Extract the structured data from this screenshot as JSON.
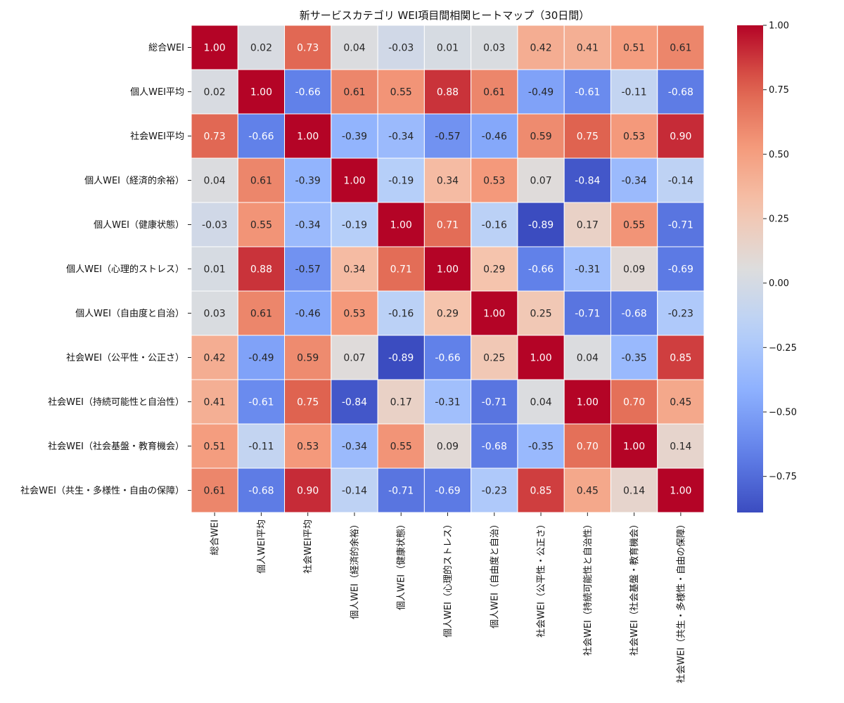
{
  "chart_data": {
    "type": "heatmap",
    "title": "新サービスカテゴリ WEI項目間相関ヒートマップ（30日間）",
    "labels": [
      "総合WEI",
      "個人WEI平均",
      "社会WEI平均",
      "個人WEI（経済的余裕）",
      "個人WEI（健康状態）",
      "個人WEI（心理的ストレス）",
      "個人WEI（自由度と自治）",
      "社会WEI（公平性・公正さ）",
      "社会WEI（持続可能性と自治性）",
      "社会WEI（社会基盤・教育機会）",
      "社会WEI（共生・多様性・自由の保障）"
    ],
    "matrix": [
      [
        1.0,
        0.02,
        0.73,
        0.04,
        -0.03,
        0.01,
        0.03,
        0.42,
        0.41,
        0.51,
        0.61
      ],
      [
        0.02,
        1.0,
        -0.66,
        0.61,
        0.55,
        0.88,
        0.61,
        -0.49,
        -0.61,
        -0.11,
        -0.68
      ],
      [
        0.73,
        -0.66,
        1.0,
        -0.39,
        -0.34,
        -0.57,
        -0.46,
        0.59,
        0.75,
        0.53,
        0.9
      ],
      [
        0.04,
        0.61,
        -0.39,
        1.0,
        -0.19,
        0.34,
        0.53,
        0.07,
        -0.84,
        -0.34,
        -0.14
      ],
      [
        -0.03,
        0.55,
        -0.34,
        -0.19,
        1.0,
        0.71,
        -0.16,
        -0.89,
        0.17,
        0.55,
        -0.71
      ],
      [
        0.01,
        0.88,
        -0.57,
        0.34,
        0.71,
        1.0,
        0.29,
        -0.66,
        -0.31,
        0.09,
        -0.69
      ],
      [
        0.03,
        0.61,
        -0.46,
        0.53,
        -0.16,
        0.29,
        1.0,
        0.25,
        -0.71,
        -0.68,
        -0.23
      ],
      [
        0.42,
        -0.49,
        0.59,
        0.07,
        -0.89,
        -0.66,
        0.25,
        1.0,
        0.04,
        -0.35,
        0.85
      ],
      [
        0.41,
        -0.61,
        0.75,
        -0.84,
        0.17,
        -0.31,
        -0.71,
        0.04,
        1.0,
        0.7,
        0.45
      ],
      [
        0.51,
        -0.11,
        0.53,
        -0.34,
        0.55,
        0.09,
        -0.68,
        -0.35,
        0.7,
        1.0,
        0.14
      ],
      [
        0.61,
        -0.68,
        0.9,
        -0.14,
        -0.71,
        -0.69,
        -0.23,
        0.85,
        0.45,
        0.14,
        1.0
      ]
    ],
    "colormap": "coolwarm",
    "vmin": -0.89,
    "vmax": 1.0,
    "colorbar_ticks": [
      1.0,
      0.75,
      0.5,
      0.25,
      0.0,
      -0.25,
      -0.5,
      -0.75
    ],
    "colorbar_tick_labels": [
      "1.00",
      "0.75",
      "0.50",
      "0.25",
      "0.00",
      "−0.25",
      "−0.50",
      "−0.75"
    ],
    "annotations": true
  }
}
